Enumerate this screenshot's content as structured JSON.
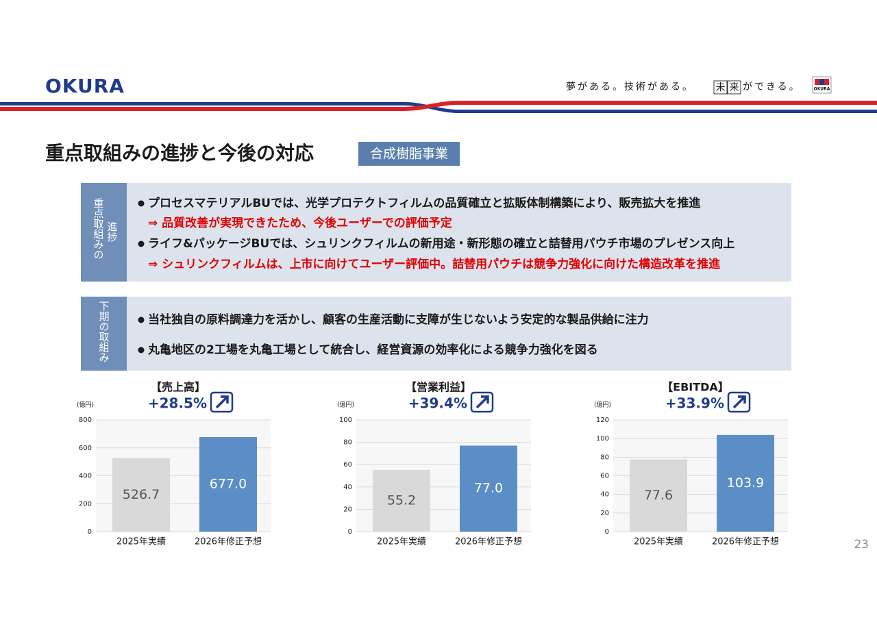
{
  "header": {
    "logo": "OKURA",
    "tagline": [
      "夢がある。技術がある。",
      "未",
      "来",
      "ができる。"
    ],
    "badge": "OKURA"
  },
  "title": "重点取組みの進捗と今後の対応",
  "tag": "合成樹脂事業",
  "sections": [
    {
      "label": [
        "重点取組みの",
        "進捗"
      ],
      "items": [
        {
          "text": "プロセスマテリアルBUでは、光学プロテクトフィルムの品質確立と拡販体制構築により、販売拡大を推進",
          "color": "#1a1a1a",
          "bullet": true
        },
        {
          "text": "⇒ 品質改善が実現できたため、今後ユーザーでの評価予定",
          "color": "#e00000",
          "bullet": false
        },
        {
          "text": "ライフ&パッケージBUでは、シュリンクフィルムの新用途・新形態の確立と詰替用パウチ市場のプレゼンス向上",
          "color": "#1a1a1a",
          "bullet": true
        },
        {
          "text": "⇒ シュリンクフィルムは、上市に向けてユーザー評価中。詰替用パウチは競争力強化に向けた構造改革を推進",
          "color": "#e00000",
          "bullet": false
        }
      ]
    },
    {
      "label": [
        "下期の取組み"
      ],
      "items": [
        {
          "text": "当社独自の原料調達力を活かし、顧客の生産活動に支障が生じないよう安定的な製品供給に注力",
          "color": "#1a1a1a",
          "bullet": true
        },
        {
          "text": "丸亀地区の2工場を丸亀工場として統合し、経営資源の効率化による競争力強化を図る",
          "color": "#1a1a1a",
          "bullet": true
        }
      ]
    }
  ],
  "page_number": "23",
  "chart_data": [
    {
      "type": "bar",
      "title": "【売上高】",
      "subtitle": "+28.5%",
      "y_label": "(億円)",
      "categories": [
        "2025年実績",
        "2026年修正予想"
      ],
      "values": [
        526.7,
        677.0
      ],
      "value_labels": [
        "526.7",
        "677.0"
      ],
      "colors": [
        "#d9d9d9",
        "#5b8ec6"
      ],
      "label_colors": [
        "#555555",
        "#ffffff"
      ],
      "ylim": [
        0,
        800
      ],
      "yticks": [
        0,
        200,
        400,
        600,
        800
      ],
      "grid": true
    },
    {
      "type": "bar",
      "title": "【営業利益】",
      "subtitle": "+39.4%",
      "y_label": "(億円)",
      "categories": [
        "2025年実績",
        "2026年修正予想"
      ],
      "values": [
        55.2,
        77.0
      ],
      "value_labels": [
        "55.2",
        "77.0"
      ],
      "colors": [
        "#d9d9d9",
        "#5b8ec6"
      ],
      "label_colors": [
        "#555555",
        "#ffffff"
      ],
      "ylim": [
        0,
        100
      ],
      "yticks": [
        0,
        20,
        40,
        60,
        80,
        100
      ],
      "grid": true
    },
    {
      "type": "bar",
      "title": "【EBITDA】",
      "subtitle": "+33.9%",
      "y_label": "(億円)",
      "categories": [
        "2025年実績",
        "2026年修正予想"
      ],
      "values": [
        77.6,
        103.9
      ],
      "value_labels": [
        "77.6",
        "103.9"
      ],
      "colors": [
        "#d9d9d9",
        "#5b8ec6"
      ],
      "label_colors": [
        "#555555",
        "#ffffff"
      ],
      "ylim": [
        0,
        120
      ],
      "yticks": [
        0,
        20,
        40,
        60,
        80,
        100,
        120
      ],
      "grid": true
    }
  ]
}
